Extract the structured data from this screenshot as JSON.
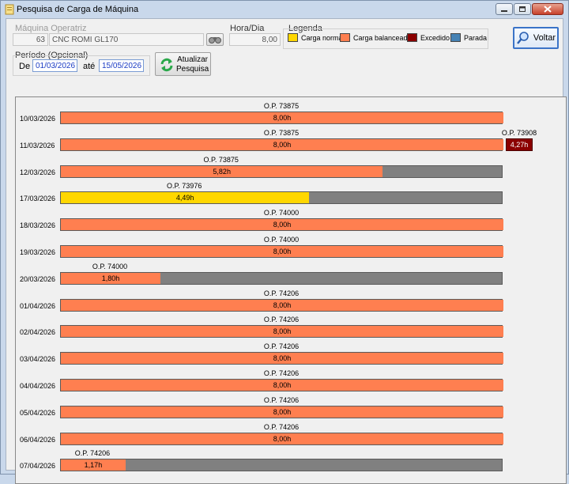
{
  "window": {
    "title": "Pesquisa de Carga de Máquina"
  },
  "machine": {
    "label": "Máquina Operatriz",
    "code": "63",
    "name": "CNC ROMI GL170"
  },
  "hours": {
    "label": "Hora/Dia",
    "value": "8,00"
  },
  "legend": {
    "title": "Legenda",
    "items": [
      {
        "label": "Carga normal",
        "color": "#ffd700"
      },
      {
        "label": "Carga balanceada",
        "color": "#ff7f50"
      },
      {
        "label": "Excedido",
        "color": "#8b0000"
      },
      {
        "label": "Parada",
        "color": "#4682b4"
      }
    ]
  },
  "period": {
    "label": "Período (Opcional)",
    "from_label": "De",
    "from": "01/03/2026",
    "to_label": "até",
    "to": "15/05/2026"
  },
  "buttons": {
    "refresh": "Atualizar\nPesquisa",
    "back": "Voltar"
  },
  "colors": {
    "normal": "#ffd700",
    "balanced": "#ff7f50",
    "exceeded": "#8b0000",
    "idle": "#808080"
  },
  "schedule": [
    {
      "date": "10/03/2026",
      "op": "O.P. 73875",
      "hours": 8.0,
      "label": "8,00h",
      "type": "balanced"
    },
    {
      "date": "11/03/2026",
      "op": "O.P. 73875",
      "hours": 8.0,
      "label": "8,00h",
      "type": "balanced",
      "extra": {
        "op": "O.P. 73908",
        "label": "4,27h"
      }
    },
    {
      "date": "12/03/2026",
      "op": "O.P. 73875",
      "hours": 5.82,
      "label": "5,82h",
      "type": "balanced"
    },
    {
      "date": "17/03/2026",
      "op": "O.P. 73976",
      "hours": 4.49,
      "label": "4,49h",
      "type": "normal"
    },
    {
      "date": "18/03/2026",
      "op": "O.P. 74000",
      "hours": 8.0,
      "label": "8,00h",
      "type": "balanced"
    },
    {
      "date": "19/03/2026",
      "op": "O.P. 74000",
      "hours": 8.0,
      "label": "8,00h",
      "type": "balanced"
    },
    {
      "date": "20/03/2026",
      "op": "O.P. 74000",
      "hours": 1.8,
      "label": "1,80h",
      "type": "balanced"
    },
    {
      "date": "01/04/2026",
      "op": "O.P. 74206",
      "hours": 8.0,
      "label": "8,00h",
      "type": "balanced"
    },
    {
      "date": "02/04/2026",
      "op": "O.P. 74206",
      "hours": 8.0,
      "label": "8,00h",
      "type": "balanced"
    },
    {
      "date": "03/04/2026",
      "op": "O.P. 74206",
      "hours": 8.0,
      "label": "8,00h",
      "type": "balanced"
    },
    {
      "date": "04/04/2026",
      "op": "O.P. 74206",
      "hours": 8.0,
      "label": "8,00h",
      "type": "balanced"
    },
    {
      "date": "05/04/2026",
      "op": "O.P. 74206",
      "hours": 8.0,
      "label": "8,00h",
      "type": "balanced"
    },
    {
      "date": "06/04/2026",
      "op": "O.P. 74206",
      "hours": 8.0,
      "label": "8,00h",
      "type": "balanced"
    },
    {
      "date": "07/04/2026",
      "op": "O.P. 74206",
      "hours": 1.17,
      "label": "1,17h",
      "type": "balanced"
    }
  ]
}
